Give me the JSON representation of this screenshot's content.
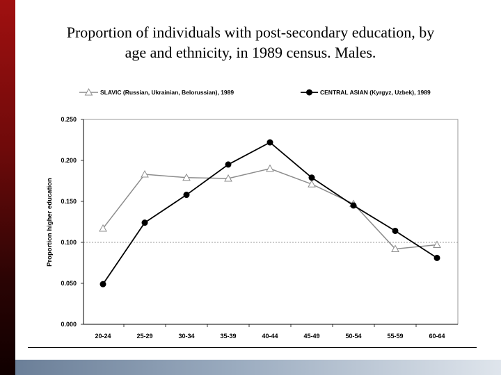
{
  "slide": {
    "title_line1": "Proportion of individuals with post-secondary education, by",
    "title_line2": "age and ethnicity, in 1989 census.  Males."
  },
  "colors": {
    "slavic": "#8c8c8c",
    "central_asian": "#000000",
    "accent_left": "#8b0f0f",
    "accent_bottom": "#7f91a8"
  },
  "chart_data": {
    "type": "line",
    "xlabel": "",
    "ylabel": "Proportion higher education",
    "categories": [
      "20-24",
      "25-29",
      "30-34",
      "35-39",
      "40-44",
      "45-49",
      "50-54",
      "55-59",
      "60-64"
    ],
    "ylim": [
      0,
      0.25
    ],
    "yticks": [
      "0.000",
      "0.050",
      "0.100",
      "0.150",
      "0.200",
      "0.250"
    ],
    "reference_line": 0.1,
    "grid": false,
    "legend_position": "top",
    "series": [
      {
        "name": "SLAVIC (Russian, Ukrainian, Belorussian),  1989",
        "marker": "triangle-open",
        "values": [
          0.117,
          0.183,
          0.179,
          0.178,
          0.19,
          0.171,
          0.147,
          0.092,
          0.097
        ]
      },
      {
        "name": "CENTRAL ASIAN (Kyrgyz, Uzbek),  1989",
        "marker": "circle-filled",
        "values": [
          0.049,
          0.124,
          0.158,
          0.195,
          0.222,
          0.179,
          0.145,
          0.114,
          0.081
        ]
      }
    ]
  }
}
